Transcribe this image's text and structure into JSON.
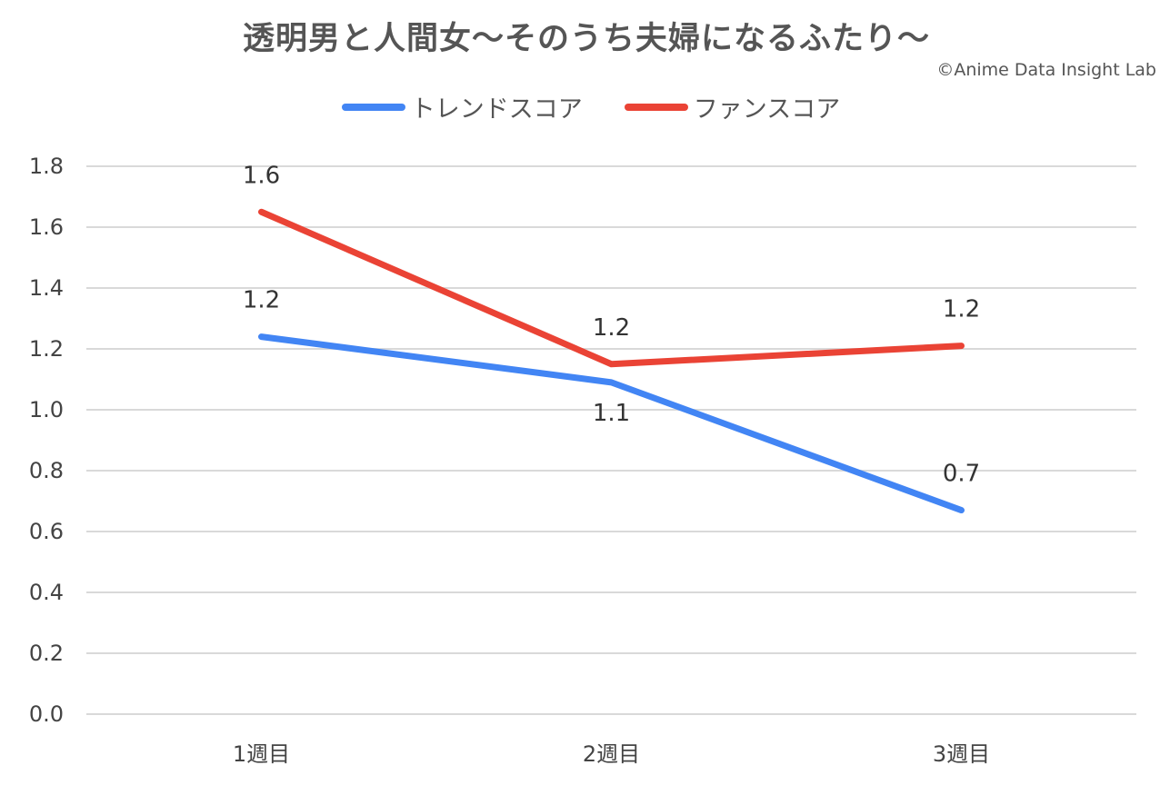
{
  "chart_data": {
    "type": "line",
    "title": "透明男と人間女～そのうち夫婦になるふたり～",
    "credit": "©Anime Data Insight Lab",
    "categories": [
      "1週目",
      "2週目",
      "3週目"
    ],
    "series": [
      {
        "name": "トレンドスコア",
        "color": "#4285f4",
        "values": [
          1.24,
          1.09,
          0.67
        ],
        "labels": [
          "1.2",
          "1.1",
          "0.7"
        ]
      },
      {
        "name": "ファンスコア",
        "color": "#ea4335",
        "values": [
          1.65,
          1.15,
          1.21
        ],
        "labels": [
          "1.6",
          "1.2",
          "1.2"
        ]
      }
    ],
    "yticks": [
      "0.0",
      "0.2",
      "0.4",
      "0.6",
      "0.8",
      "1.0",
      "1.2",
      "1.4",
      "1.6",
      "1.8"
    ],
    "ylim": [
      0,
      1.8
    ],
    "xlabel": "",
    "ylabel": "",
    "grid": true,
    "legend": "top"
  }
}
